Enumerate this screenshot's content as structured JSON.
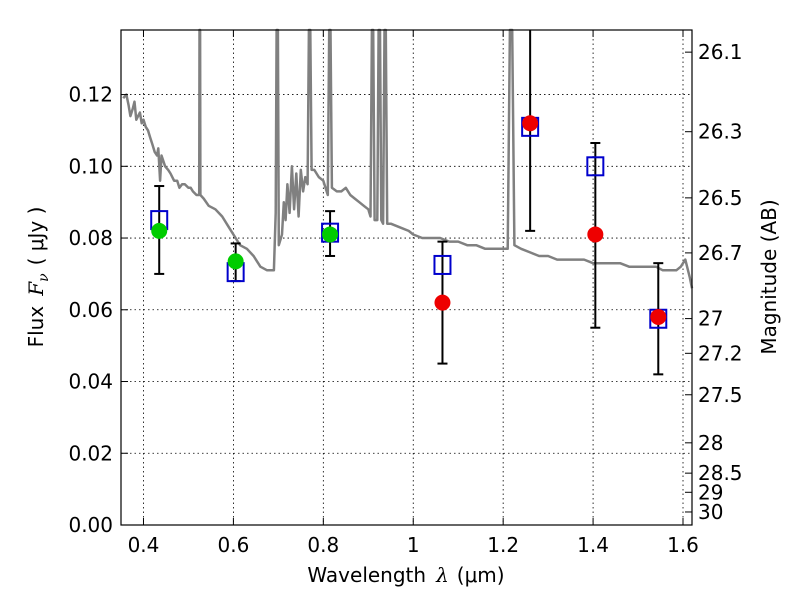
{
  "chart_data": {
    "type": "scatter",
    "xlabel_text": "Wavelength",
    "xlabel_symbol": "λ",
    "xlabel_unit": "(μm)",
    "ylabel_text": "Flux",
    "ylabel_symbol": "F",
    "ylabel_sub": "ν",
    "ylabel_unit": "( μJy )",
    "y2label": "Magnitude (AB)",
    "xlim": [
      0.35,
      1.62
    ],
    "ylim": [
      0.0,
      0.138
    ],
    "grid": true,
    "x_ticks": [
      0.4,
      0.6,
      0.8,
      1.0,
      1.2,
      1.4,
      1.6
    ],
    "x_tick_labels": [
      "0.4",
      "0.6",
      "0.8",
      "1",
      "1.2",
      "1.4",
      "1.6"
    ],
    "y_ticks": [
      0.0,
      0.02,
      0.04,
      0.06,
      0.08,
      0.1,
      0.12
    ],
    "y_tick_labels": [
      "0.00",
      "0.02",
      "0.04",
      "0.06",
      "0.08",
      "0.10",
      "0.12"
    ],
    "y2_ticks": [
      {
        "mag": 26.1,
        "label": "26.1"
      },
      {
        "mag": 26.3,
        "label": "26.3"
      },
      {
        "mag": 26.5,
        "label": "26.5"
      },
      {
        "mag": 26.7,
        "label": "26.7"
      },
      {
        "mag": 27.0,
        "label": "27"
      },
      {
        "mag": 27.2,
        "label": "27.2"
      },
      {
        "mag": 27.5,
        "label": "27.5"
      },
      {
        "mag": 28.0,
        "label": "28"
      },
      {
        "mag": 28.5,
        "label": "28.5"
      },
      {
        "mag": 29.0,
        "label": "29"
      },
      {
        "mag": 30.0,
        "label": "30"
      }
    ],
    "model_spectrum": {
      "color": "#808080",
      "points": [
        [
          0.355,
          0.119
        ],
        [
          0.362,
          0.12
        ],
        [
          0.367,
          0.117
        ],
        [
          0.371,
          0.114
        ],
        [
          0.376,
          0.116
        ],
        [
          0.38,
          0.118
        ],
        [
          0.384,
          0.113
        ],
        [
          0.388,
          0.114
        ],
        [
          0.392,
          0.115
        ],
        [
          0.396,
          0.112
        ],
        [
          0.4,
          0.113
        ],
        [
          0.405,
          0.111
        ],
        [
          0.41,
          0.11
        ],
        [
          0.415,
          0.108
        ],
        [
          0.42,
          0.106
        ],
        [
          0.425,
          0.104
        ],
        [
          0.43,
          0.103
        ],
        [
          0.433,
          0.105
        ],
        [
          0.437,
          0.096
        ],
        [
          0.44,
          0.103
        ],
        [
          0.448,
          0.1
        ],
        [
          0.455,
          0.099
        ],
        [
          0.46,
          0.098
        ],
        [
          0.468,
          0.096
        ],
        [
          0.475,
          0.096
        ],
        [
          0.48,
          0.094
        ],
        [
          0.486,
          0.095
        ],
        [
          0.492,
          0.095
        ],
        [
          0.5,
          0.094
        ],
        [
          0.505,
          0.094
        ],
        [
          0.51,
          0.093
        ],
        [
          0.518,
          0.092
        ],
        [
          0.524,
          0.092
        ],
        [
          0.5245,
          0.138
        ],
        [
          0.526,
          0.138
        ],
        [
          0.5265,
          0.092
        ],
        [
          0.534,
          0.091
        ],
        [
          0.545,
          0.089
        ],
        [
          0.56,
          0.088
        ],
        [
          0.575,
          0.086
        ],
        [
          0.59,
          0.083
        ],
        [
          0.605,
          0.08
        ],
        [
          0.615,
          0.078
        ],
        [
          0.63,
          0.077
        ],
        [
          0.645,
          0.075
        ],
        [
          0.66,
          0.072
        ],
        [
          0.675,
          0.071
        ],
        [
          0.69,
          0.071
        ],
        [
          0.694,
          0.087
        ],
        [
          0.696,
          0.138
        ],
        [
          0.699,
          0.138
        ],
        [
          0.701,
          0.078
        ],
        [
          0.708,
          0.081
        ],
        [
          0.712,
          0.09
        ],
        [
          0.716,
          0.085
        ],
        [
          0.72,
          0.095
        ],
        [
          0.725,
          0.087
        ],
        [
          0.73,
          0.1
        ],
        [
          0.735,
          0.088
        ],
        [
          0.74,
          0.098
        ],
        [
          0.745,
          0.086
        ],
        [
          0.75,
          0.099
        ],
        [
          0.755,
          0.093
        ],
        [
          0.76,
          0.097
        ],
        [
          0.765,
          0.095
        ],
        [
          0.768,
          0.138
        ],
        [
          0.771,
          0.138
        ],
        [
          0.774,
          0.099
        ],
        [
          0.78,
          0.099
        ],
        [
          0.79,
          0.097
        ],
        [
          0.8,
          0.096
        ],
        [
          0.81,
          0.092
        ],
        [
          0.813,
          0.138
        ],
        [
          0.816,
          0.138
        ],
        [
          0.819,
          0.094
        ],
        [
          0.83,
          0.093
        ],
        [
          0.84,
          0.093
        ],
        [
          0.85,
          0.094
        ],
        [
          0.86,
          0.092
        ],
        [
          0.87,
          0.091
        ],
        [
          0.88,
          0.09
        ],
        [
          0.89,
          0.089
        ],
        [
          0.9,
          0.088
        ],
        [
          0.905,
          0.086
        ],
        [
          0.908,
          0.138
        ],
        [
          0.911,
          0.138
        ],
        [
          0.914,
          0.085
        ],
        [
          0.92,
          0.085
        ],
        [
          0.923,
          0.138
        ],
        [
          0.926,
          0.138
        ],
        [
          0.929,
          0.085
        ],
        [
          0.933,
          0.084
        ],
        [
          0.936,
          0.138
        ],
        [
          0.939,
          0.138
        ],
        [
          0.942,
          0.084
        ],
        [
          0.95,
          0.084
        ],
        [
          0.97,
          0.083
        ],
        [
          0.99,
          0.082
        ],
        [
          1.0,
          0.081
        ],
        [
          1.02,
          0.08
        ],
        [
          1.04,
          0.08
        ],
        [
          1.06,
          0.08
        ],
        [
          1.08,
          0.079
        ],
        [
          1.1,
          0.079
        ],
        [
          1.12,
          0.078
        ],
        [
          1.14,
          0.078
        ],
        [
          1.16,
          0.077
        ],
        [
          1.18,
          0.077
        ],
        [
          1.2,
          0.077
        ],
        [
          1.21,
          0.077
        ],
        [
          1.215,
          0.138
        ],
        [
          1.22,
          0.138
        ],
        [
          1.225,
          0.078
        ],
        [
          1.24,
          0.077
        ],
        [
          1.26,
          0.076
        ],
        [
          1.28,
          0.075
        ],
        [
          1.3,
          0.075
        ],
        [
          1.32,
          0.074
        ],
        [
          1.34,
          0.074
        ],
        [
          1.36,
          0.074
        ],
        [
          1.38,
          0.074
        ],
        [
          1.4,
          0.073
        ],
        [
          1.42,
          0.073
        ],
        [
          1.44,
          0.073
        ],
        [
          1.46,
          0.073
        ],
        [
          1.48,
          0.072
        ],
        [
          1.5,
          0.072
        ],
        [
          1.52,
          0.072
        ],
        [
          1.54,
          0.072
        ],
        [
          1.555,
          0.071
        ],
        [
          1.565,
          0.071
        ],
        [
          1.575,
          0.071
        ],
        [
          1.585,
          0.071
        ],
        [
          1.595,
          0.072
        ],
        [
          1.605,
          0.074
        ],
        [
          1.615,
          0.069
        ],
        [
          1.62,
          0.066
        ]
      ]
    },
    "model_photometry": {
      "marker": "open-square",
      "color": "#0000cc",
      "points": [
        {
          "x": 0.435,
          "y": 0.085
        },
        {
          "x": 0.605,
          "y": 0.0705
        },
        {
          "x": 0.815,
          "y": 0.0815
        },
        {
          "x": 1.065,
          "y": 0.0725
        },
        {
          "x": 1.26,
          "y": 0.111
        },
        {
          "x": 1.405,
          "y": 0.1
        },
        {
          "x": 1.545,
          "y": 0.0575
        }
      ]
    },
    "observed_green": {
      "marker": "filled-circle",
      "color": "#00cc00",
      "points": [
        {
          "x": 0.435,
          "y": 0.082,
          "yerr_low": 0.07,
          "yerr_high": 0.0945
        },
        {
          "x": 0.605,
          "y": 0.0735,
          "yerr_low": 0.068,
          "yerr_high": 0.0785
        },
        {
          "x": 0.815,
          "y": 0.081,
          "yerr_low": 0.075,
          "yerr_high": 0.0875
        }
      ]
    },
    "observed_red": {
      "marker": "filled-circle",
      "color": "#ee0000",
      "points": [
        {
          "x": 1.065,
          "y": 0.062,
          "yerr_low": 0.045,
          "yerr_high": 0.079
        },
        {
          "x": 1.26,
          "y": 0.112,
          "yerr_low": 0.082,
          "yerr_high": 0.138
        },
        {
          "x": 1.405,
          "y": 0.081,
          "yerr_low": 0.055,
          "yerr_high": 0.1065
        },
        {
          "x": 1.545,
          "y": 0.058,
          "yerr_low": 0.042,
          "yerr_high": 0.073
        }
      ]
    }
  }
}
